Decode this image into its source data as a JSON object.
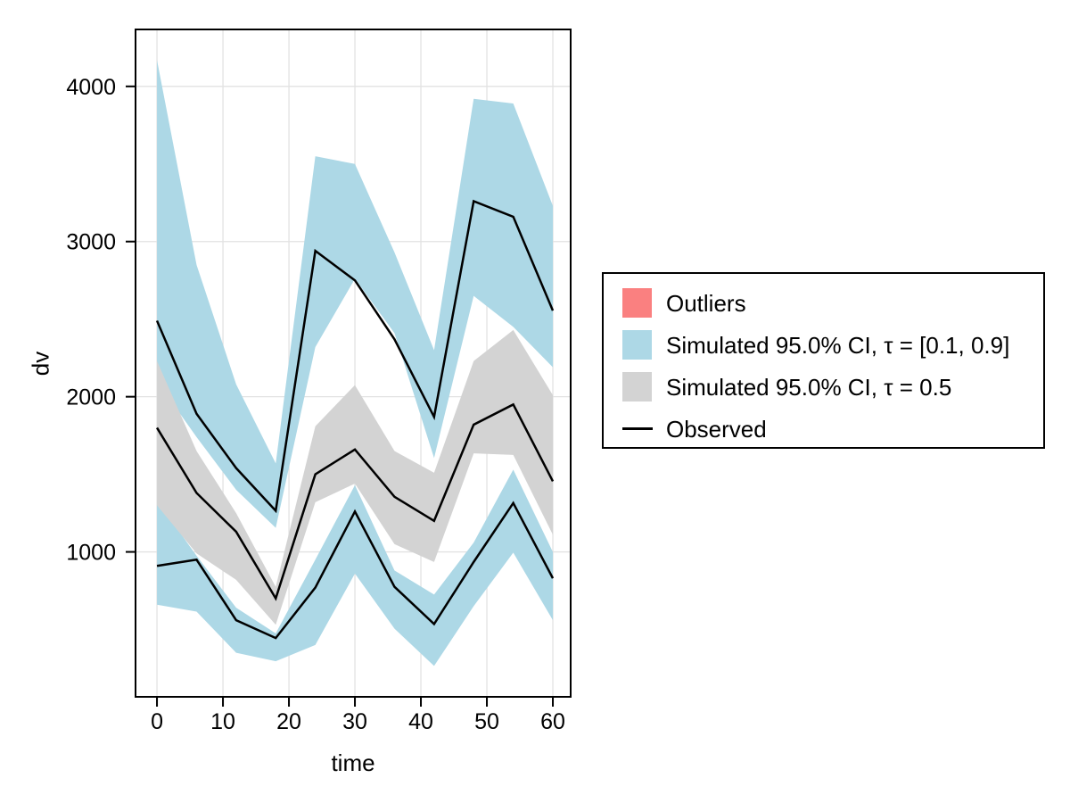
{
  "chart_data": {
    "type": "area",
    "title": "",
    "xlabel": "time",
    "ylabel": "dv",
    "grid": true,
    "x": [
      0,
      6,
      12,
      18,
      24,
      30,
      36,
      42,
      48,
      54,
      60
    ],
    "x_ticks": [
      0,
      10,
      20,
      30,
      40,
      50,
      60
    ],
    "y_ticks": [
      1000,
      2000,
      3000,
      4000
    ],
    "xlim": [
      -3.25,
      62.7
    ],
    "ylim": [
      66,
      4367
    ],
    "bands": [
      {
        "name": "Simulated 95.0% CI, τ = [0.1, 0.9] — upper quantile band",
        "color": "#ADD8E6",
        "hi": [
          4170,
          2850,
          2080,
          1570,
          3550,
          3500,
          2930,
          2300,
          3920,
          3890,
          3230
        ],
        "lo": [
          2100,
          1740,
          1400,
          1155,
          2320,
          2760,
          2410,
          1605,
          2650,
          2450,
          2190
        ]
      },
      {
        "name": "Simulated 95.0% CI, τ = [0.1, 0.9] — lower quantile band",
        "color": "#ADD8E6",
        "hi": [
          1330,
          975,
          640,
          475,
          950,
          1430,
          880,
          725,
          1060,
          1530,
          1000
        ],
        "lo": [
          660,
          615,
          350,
          295,
          400,
          860,
          505,
          265,
          650,
          995,
          560
        ]
      },
      {
        "name": "Simulated 95.0% CI, τ = 0.5 — median band",
        "color": "#D3D3D3",
        "hi": [
          2230,
          1650,
          1250,
          775,
          1810,
          2075,
          1650,
          1510,
          2230,
          2430,
          2010
        ],
        "lo": [
          1300,
          990,
          820,
          530,
          1320,
          1440,
          1050,
          935,
          1635,
          1625,
          1110
        ]
      }
    ],
    "series": [
      {
        "name": "Observed (upper quantile)",
        "color": "#000000",
        "values": [
          2490,
          1890,
          1540,
          1265,
          2940,
          2750,
          2370,
          1870,
          3260,
          3160,
          2555
        ]
      },
      {
        "name": "Observed (median)",
        "color": "#000000",
        "values": [
          1800,
          1380,
          1130,
          700,
          1500,
          1660,
          1355,
          1200,
          1820,
          1950,
          1455
        ]
      },
      {
        "name": "Observed (lower quantile)",
        "color": "#000000",
        "values": [
          910,
          950,
          560,
          445,
          770,
          1260,
          775,
          535,
          935,
          1315,
          830
        ]
      }
    ],
    "legend_position": "right"
  },
  "legend": {
    "items": [
      {
        "label": "Outliers",
        "swatch": "fill",
        "color": "#FA8080"
      },
      {
        "label": "Simulated 95.0% CI, τ = [0.1, 0.9]",
        "swatch": "fill",
        "color": "#ADD8E6"
      },
      {
        "label": "Simulated 95.0% CI, τ = 0.5",
        "swatch": "fill",
        "color": "#D3D3D3"
      },
      {
        "label": "Observed",
        "swatch": "line",
        "color": "#000000"
      }
    ]
  },
  "style": {
    "grid_color": "#E2E2E2",
    "spine_color": "#000000",
    "tick_color": "#000000",
    "background": "#FFFFFF"
  }
}
